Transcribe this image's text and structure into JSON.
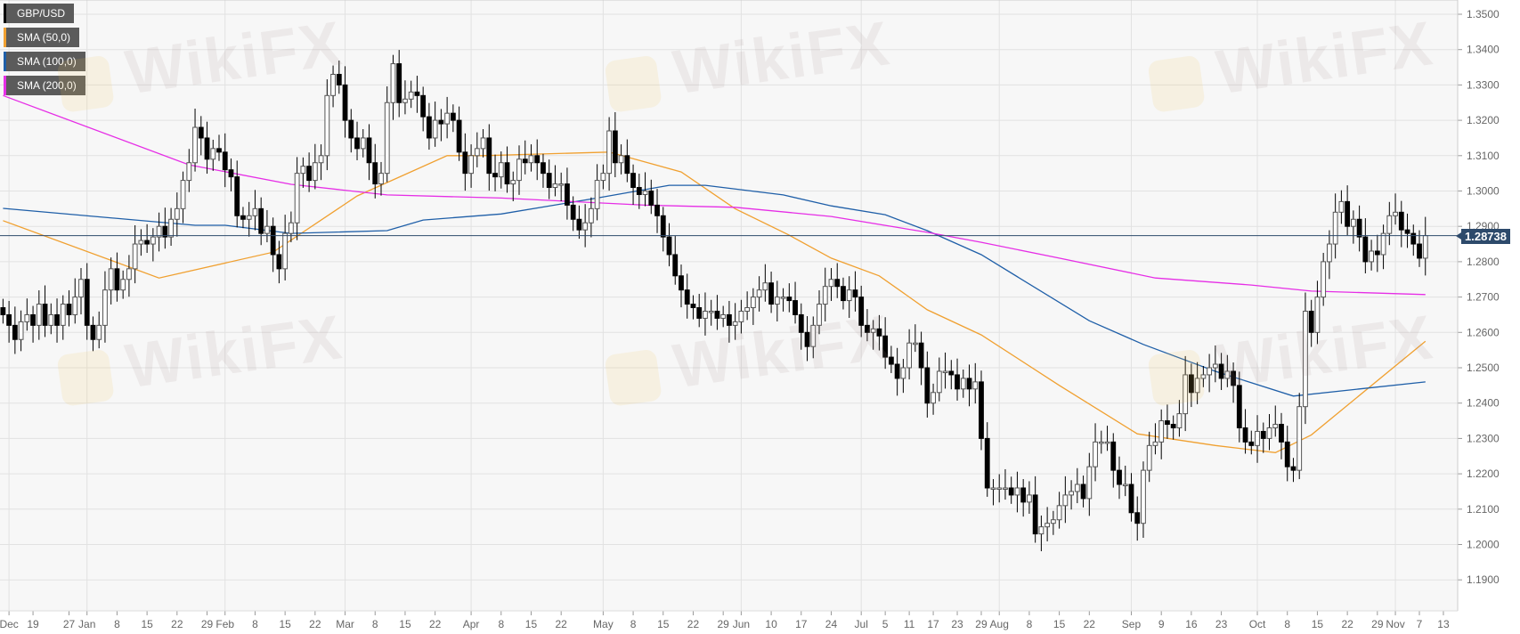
{
  "chart_data": {
    "type": "candlestick",
    "symbol": "GBP/USD",
    "last_price": "1.28738",
    "ylim": [
      1.185,
      1.3535
    ],
    "yticks": [
      "1.1900",
      "1.2000",
      "1.2100",
      "1.2200",
      "1.2300",
      "1.2400",
      "1.2500",
      "1.2600",
      "1.2700",
      "1.2800",
      "1.2900",
      "1.3000",
      "1.3100",
      "1.3200",
      "1.3300",
      "1.3400",
      "1.3500"
    ],
    "xticks": [
      {
        "label": "Dec",
        "date": "2018-12-13"
      },
      {
        "label": "19",
        "date": "2018-12-19"
      },
      {
        "label": "27",
        "date": "2018-12-27"
      },
      {
        "label": "Jan",
        "date": "2019-01-01"
      },
      {
        "label": "8",
        "date": "2019-01-08"
      },
      {
        "label": "15",
        "date": "2019-01-15"
      },
      {
        "label": "22",
        "date": "2019-01-22"
      },
      {
        "label": "29",
        "date": "2019-01-29"
      },
      {
        "label": "Feb",
        "date": "2019-02-01"
      },
      {
        "label": "8",
        "date": "2019-02-08"
      },
      {
        "label": "15",
        "date": "2019-02-15"
      },
      {
        "label": "22",
        "date": "2019-02-22"
      },
      {
        "label": "Mar",
        "date": "2019-03-01"
      },
      {
        "label": "8",
        "date": "2019-03-08"
      },
      {
        "label": "15",
        "date": "2019-03-15"
      },
      {
        "label": "22",
        "date": "2019-03-22"
      },
      {
        "label": "Apr",
        "date": "2019-04-01"
      },
      {
        "label": "8",
        "date": "2019-04-08"
      },
      {
        "label": "15",
        "date": "2019-04-15"
      },
      {
        "label": "22",
        "date": "2019-04-22"
      },
      {
        "label": "May",
        "date": "2019-05-01"
      },
      {
        "label": "8",
        "date": "2019-05-08"
      },
      {
        "label": "15",
        "date": "2019-05-15"
      },
      {
        "label": "22",
        "date": "2019-05-22"
      },
      {
        "label": "29",
        "date": "2019-05-29"
      },
      {
        "label": "Jun",
        "date": "2019-06-03"
      },
      {
        "label": "10",
        "date": "2019-06-10"
      },
      {
        "label": "17",
        "date": "2019-06-17"
      },
      {
        "label": "24",
        "date": "2019-06-24"
      },
      {
        "label": "Jul",
        "date": "2019-07-01"
      },
      {
        "label": "5",
        "date": "2019-07-05"
      },
      {
        "label": "11",
        "date": "2019-07-11"
      },
      {
        "label": "17",
        "date": "2019-07-17"
      },
      {
        "label": "23",
        "date": "2019-07-23"
      },
      {
        "label": "29",
        "date": "2019-07-29"
      },
      {
        "label": "Aug",
        "date": "2019-08-01"
      },
      {
        "label": "8",
        "date": "2019-08-08"
      },
      {
        "label": "15",
        "date": "2019-08-15"
      },
      {
        "label": "22",
        "date": "2019-08-22"
      },
      {
        "label": "Sep",
        "date": "2019-09-02"
      },
      {
        "label": "9",
        "date": "2019-09-09"
      },
      {
        "label": "16",
        "date": "2019-09-16"
      },
      {
        "label": "23",
        "date": "2019-09-23"
      },
      {
        "label": "Oct",
        "date": "2019-10-01"
      },
      {
        "label": "8",
        "date": "2019-10-08"
      },
      {
        "label": "15",
        "date": "2019-10-15"
      },
      {
        "label": "22",
        "date": "2019-10-22"
      },
      {
        "label": "29",
        "date": "2019-10-29"
      },
      {
        "label": "Nov",
        "date": "2019-11-01"
      },
      {
        "label": "7",
        "date": "2019-11-07"
      },
      {
        "label": "13",
        "date": "2019-11-13"
      }
    ],
    "grid": true,
    "legend_placement": "top-left",
    "legend": [
      {
        "label": "GBP/USD",
        "color": "#000000"
      },
      {
        "label": "SMA (50,0)",
        "color": "#f0a030"
      },
      {
        "label": "SMA (100,0)",
        "color": "#1f5fa8"
      },
      {
        "label": "SMA (200,0)",
        "color": "#e62ee6"
      }
    ],
    "candle_weeks": [
      {
        "start": "2018-12-12",
        "close": [
          1.265,
          1.262,
          1.258
        ]
      },
      {
        "start": "2018-12-17",
        "close": [
          1.263,
          1.265,
          1.262,
          1.268,
          1.262
        ]
      },
      {
        "start": "2018-12-24",
        "close": [
          1.265,
          1.262,
          1.268,
          1.265,
          1.27
        ]
      },
      {
        "start": "2018-12-31",
        "close": [
          1.275,
          1.262,
          1.258,
          1.262,
          1.272
        ]
      },
      {
        "start": "2019-01-07",
        "close": [
          1.278,
          1.272,
          1.275,
          1.278,
          1.285
        ]
      },
      {
        "start": "2019-01-14",
        "close": [
          1.286,
          1.285,
          1.287,
          1.29,
          1.287
        ]
      },
      {
        "start": "2019-01-21",
        "close": [
          1.292,
          1.295,
          1.303,
          1.308,
          1.318
        ]
      },
      {
        "start": "2019-01-28",
        "close": [
          1.315,
          1.309,
          1.312,
          1.311,
          1.306
        ]
      },
      {
        "start": "2019-02-04",
        "close": [
          1.304,
          1.293,
          1.292,
          1.293,
          1.295
        ]
      },
      {
        "start": "2019-02-11",
        "close": [
          1.288,
          1.29,
          1.282,
          1.278,
          1.288
        ]
      },
      {
        "start": "2019-02-18",
        "close": [
          1.291,
          1.305,
          1.307,
          1.303,
          1.308
        ]
      },
      {
        "start": "2019-02-25",
        "close": [
          1.31,
          1.327,
          1.333,
          1.33,
          1.32
        ]
      },
      {
        "start": "2019-03-04",
        "close": [
          1.315,
          1.312,
          1.315,
          1.308,
          1.302
        ]
      },
      {
        "start": "2019-03-11",
        "close": [
          1.305,
          1.325,
          1.336,
          1.325,
          1.326
        ]
      },
      {
        "start": "2019-03-18",
        "close": [
          1.328,
          1.327,
          1.321,
          1.315,
          1.32
        ]
      },
      {
        "start": "2019-03-25",
        "close": [
          1.319,
          1.322,
          1.32,
          1.311,
          1.305
        ]
      },
      {
        "start": "2019-04-01",
        "close": [
          1.31,
          1.312,
          1.315,
          1.305,
          1.304
        ]
      },
      {
        "start": "2019-04-08",
        "close": [
          1.308,
          1.302,
          1.303,
          1.309,
          1.308
        ]
      },
      {
        "start": "2019-04-15",
        "close": [
          1.31,
          1.308,
          1.305,
          1.301,
          1.302
        ]
      },
      {
        "start": "2019-04-22",
        "close": [
          1.302,
          1.296,
          1.292,
          1.289,
          1.291
        ]
      },
      {
        "start": "2019-04-29",
        "close": [
          1.295,
          1.303,
          1.305,
          1.317,
          1.308
        ]
      },
      {
        "start": "2019-05-06",
        "close": [
          1.31,
          1.305,
          1.301,
          1.299,
          1.3
        ]
      },
      {
        "start": "2019-05-13",
        "close": [
          1.296,
          1.293,
          1.287,
          1.282,
          1.276
        ]
      },
      {
        "start": "2019-05-20",
        "close": [
          1.272,
          1.268,
          1.267,
          1.264,
          1.266
        ]
      },
      {
        "start": "2019-05-27",
        "close": [
          1.266,
          1.264,
          1.265,
          1.262,
          1.263
        ]
      },
      {
        "start": "2019-06-03",
        "close": [
          1.266,
          1.267,
          1.27,
          1.272,
          1.274
        ]
      },
      {
        "start": "2019-06-10",
        "close": [
          1.268,
          1.27,
          1.27,
          1.269,
          1.265
        ]
      },
      {
        "start": "2019-06-17",
        "close": [
          1.26,
          1.256,
          1.262,
          1.268,
          1.273
        ]
      },
      {
        "start": "2019-06-24",
        "close": [
          1.275,
          1.273,
          1.269,
          1.272,
          1.27
        ]
      },
      {
        "start": "2019-07-01",
        "close": [
          1.262,
          1.26,
          1.261,
          1.259,
          1.253
        ]
      },
      {
        "start": "2019-07-08",
        "close": [
          1.251,
          1.247,
          1.25,
          1.257,
          1.257
        ]
      },
      {
        "start": "2019-07-15",
        "close": [
          1.25,
          1.24,
          1.243,
          1.249,
          1.249
        ]
      },
      {
        "start": "2019-07-22",
        "close": [
          1.248,
          1.244,
          1.247,
          1.244,
          1.246
        ]
      },
      {
        "start": "2019-07-29",
        "close": [
          1.23,
          1.216,
          1.216,
          1.216,
          1.216
        ]
      },
      {
        "start": "2019-08-05",
        "close": [
          1.214,
          1.216,
          1.212,
          1.214,
          1.203
        ]
      },
      {
        "start": "2019-08-12",
        "close": [
          1.205,
          1.206,
          1.207,
          1.211,
          1.214
        ]
      },
      {
        "start": "2019-08-19",
        "close": [
          1.215,
          1.217,
          1.213,
          1.222,
          1.229
        ]
      },
      {
        "start": "2019-08-26",
        "close": [
          1.229,
          1.229,
          1.221,
          1.217,
          1.217
        ]
      },
      {
        "start": "2019-09-02",
        "close": [
          1.209,
          1.206,
          1.221,
          1.228,
          1.229
        ]
      },
      {
        "start": "2019-09-09",
        "close": [
          1.235,
          1.234,
          1.233,
          1.237,
          1.248
        ]
      },
      {
        "start": "2019-09-16",
        "close": [
          1.243,
          1.247,
          1.248,
          1.25,
          1.251
        ]
      },
      {
        "start": "2019-09-23",
        "close": [
          1.247,
          1.249,
          1.245,
          1.233,
          1.229
        ]
      },
      {
        "start": "2019-09-30",
        "close": [
          1.228,
          1.232,
          1.23,
          1.233,
          1.234
        ]
      },
      {
        "start": "2019-10-07",
        "close": [
          1.229,
          1.222,
          1.221,
          1.239,
          1.266
        ]
      },
      {
        "start": "2019-10-14",
        "close": [
          1.26,
          1.27,
          1.28,
          1.285,
          1.294
        ]
      },
      {
        "start": "2019-10-21",
        "close": [
          1.297,
          1.29,
          1.292,
          1.287,
          1.28
        ]
      },
      {
        "start": "2019-10-28",
        "close": [
          1.283,
          1.282,
          1.288,
          1.293,
          1.294
        ]
      },
      {
        "start": "2019-11-04",
        "close": [
          1.289,
          1.288,
          1.285,
          1.281,
          1.28738
        ]
      }
    ],
    "sma": [
      {
        "name": "SMA (50,0)",
        "color": "#f0a030",
        "points": [
          [
            "2018-12-12",
            1.2916
          ],
          [
            "2019-01-17",
            1.2754
          ],
          [
            "2019-02-13",
            1.2827
          ],
          [
            "2019-03-05",
            1.2986
          ],
          [
            "2019-03-26",
            1.31
          ],
          [
            "2019-04-03",
            1.31
          ],
          [
            "2019-05-02",
            1.311
          ],
          [
            "2019-05-20",
            1.3054
          ],
          [
            "2019-05-31",
            1.295
          ],
          [
            "2019-06-13",
            1.2875
          ],
          [
            "2019-06-24",
            1.281
          ],
          [
            "2019-07-04",
            1.276
          ],
          [
            "2019-07-16",
            1.2664
          ],
          [
            "2019-07-29",
            1.2593
          ],
          [
            "2019-08-15",
            1.245
          ],
          [
            "2019-09-03",
            1.2313
          ],
          [
            "2019-09-20",
            1.228
          ],
          [
            "2019-10-04",
            1.226
          ],
          [
            "2019-10-14",
            1.231
          ],
          [
            "2019-11-08",
            1.2575
          ]
        ]
      },
      {
        "name": "SMA (100,0)",
        "color": "#1f5fa8",
        "points": [
          [
            "2018-12-12",
            1.2951
          ],
          [
            "2019-01-25",
            1.2903
          ],
          [
            "2019-02-01",
            1.2903
          ],
          [
            "2019-02-18",
            1.288
          ],
          [
            "2019-03-12",
            1.2888
          ],
          [
            "2019-03-20",
            1.2918
          ],
          [
            "2019-04-08",
            1.2935
          ],
          [
            "2019-04-30",
            1.298
          ],
          [
            "2019-05-16",
            1.3016
          ],
          [
            "2019-05-24",
            1.3016
          ],
          [
            "2019-06-12",
            1.2989
          ],
          [
            "2019-06-24",
            1.2958
          ],
          [
            "2019-07-05",
            1.2933
          ],
          [
            "2019-07-16",
            1.2888
          ],
          [
            "2019-07-29",
            1.282
          ],
          [
            "2019-08-22",
            1.2633
          ],
          [
            "2019-09-04",
            1.2566
          ],
          [
            "2019-09-20",
            1.249
          ],
          [
            "2019-10-09",
            1.242
          ],
          [
            "2019-10-24",
            1.244
          ],
          [
            "2019-11-08",
            1.246
          ]
        ]
      },
      {
        "name": "SMA (200,0)",
        "color": "#e62ee6",
        "points": [
          [
            "2018-12-12",
            1.327
          ],
          [
            "2019-01-24",
            1.3074
          ],
          [
            "2019-02-18",
            1.3019
          ],
          [
            "2019-03-12",
            1.2989
          ],
          [
            "2019-04-08",
            1.298
          ],
          [
            "2019-05-10",
            1.296
          ],
          [
            "2019-05-31",
            1.2954
          ],
          [
            "2019-06-24",
            1.2928
          ],
          [
            "2019-07-16",
            1.2883
          ],
          [
            "2019-07-29",
            1.2855
          ],
          [
            "2019-08-15",
            1.281
          ],
          [
            "2019-09-06",
            1.2754
          ],
          [
            "2019-09-30",
            1.2734
          ],
          [
            "2019-10-14",
            1.2717
          ],
          [
            "2019-11-08",
            1.2707
          ]
        ]
      }
    ]
  },
  "watermark": "WikiFX"
}
